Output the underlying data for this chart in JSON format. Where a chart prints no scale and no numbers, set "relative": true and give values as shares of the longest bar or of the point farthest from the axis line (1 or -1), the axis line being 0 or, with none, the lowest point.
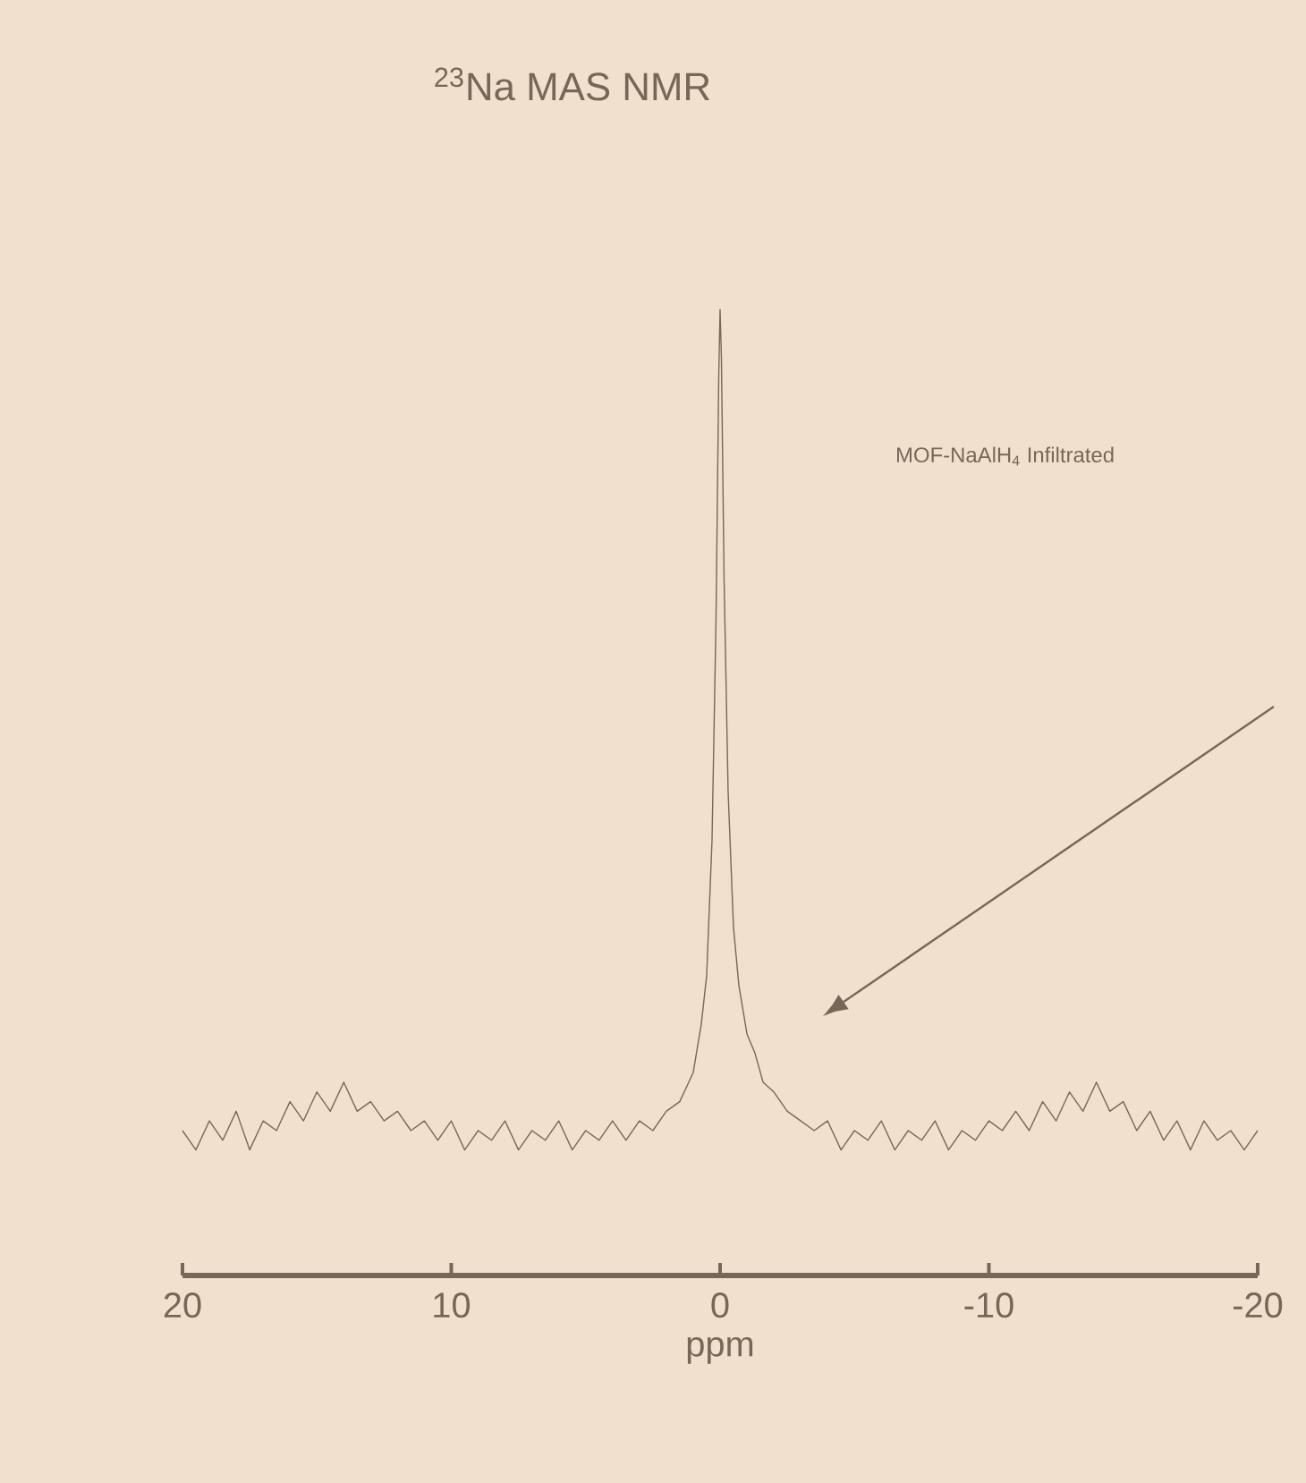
{
  "chart_data": {
    "type": "line",
    "title": "$^{23}$Na MAS NMR",
    "xlabel": "ppm",
    "relative": true,
    "xlim": [
      20,
      -20
    ],
    "xticks": [
      20,
      10,
      0,
      -10,
      -20
    ],
    "annotations": [
      "MOF-NaAlH$_{4}$ Infiltrated"
    ],
    "series": [
      {
        "color": "#7a6656",
        "x": [
          20,
          19.5,
          19,
          18.5,
          18,
          17.5,
          17,
          16.5,
          16,
          15.5,
          15,
          14.5,
          14,
          13.5,
          13,
          12.5,
          12,
          11.5,
          11,
          10.5,
          10,
          9.5,
          9,
          8.5,
          8,
          7.5,
          7,
          6.5,
          6,
          5.5,
          5,
          4.5,
          4,
          3.5,
          3,
          2.5,
          2,
          1.5,
          1,
          0.7,
          0.5,
          0.3,
          0.15,
          0.05,
          0,
          -0.05,
          -0.15,
          -0.3,
          -0.5,
          -0.7,
          -1,
          -1.3,
          -1.6,
          -2,
          -2.5,
          -3,
          -3.5,
          -4,
          -4.5,
          -5,
          -5.5,
          -6,
          -6.5,
          -7,
          -7.5,
          -8,
          -8.5,
          -9,
          -9.5,
          -10,
          -10.5,
          -11,
          -11.5,
          -12,
          -12.5,
          -13,
          -13.5,
          -14,
          -14.5,
          -15,
          -15.5,
          -16,
          -16.5,
          -17,
          -17.5,
          -18,
          -18.5,
          -19,
          -19.5,
          -20
        ],
        "values": [
          0.15,
          0.13,
          0.16,
          0.14,
          0.17,
          0.13,
          0.16,
          0.15,
          0.18,
          0.16,
          0.19,
          0.17,
          0.2,
          0.17,
          0.18,
          0.16,
          0.17,
          0.15,
          0.16,
          0.14,
          0.16,
          0.13,
          0.15,
          0.14,
          0.16,
          0.13,
          0.15,
          0.14,
          0.16,
          0.13,
          0.15,
          0.14,
          0.16,
          0.14,
          0.16,
          0.15,
          0.17,
          0.18,
          0.21,
          0.26,
          0.31,
          0.45,
          0.68,
          0.93,
          1,
          0.95,
          0.72,
          0.5,
          0.36,
          0.3,
          0.25,
          0.23,
          0.2,
          0.19,
          0.17,
          0.16,
          0.15,
          0.16,
          0.13,
          0.15,
          0.14,
          0.16,
          0.13,
          0.15,
          0.14,
          0.16,
          0.13,
          0.15,
          0.14,
          0.16,
          0.15,
          0.17,
          0.15,
          0.18,
          0.16,
          0.19,
          0.17,
          0.2,
          0.17,
          0.18,
          0.15,
          0.17,
          0.14,
          0.16,
          0.13,
          0.16,
          0.14,
          0.15,
          0.13,
          0.15
        ]
      }
    ]
  }
}
